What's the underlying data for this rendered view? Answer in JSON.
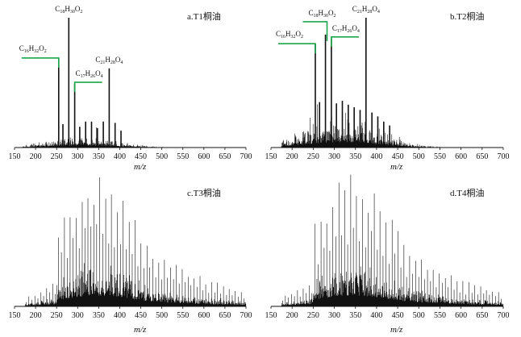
{
  "chart_data": [
    {
      "type": "bar",
      "title": "a.T1桐油",
      "xlabel": "m/z",
      "xlim": [
        150,
        700
      ],
      "xticks": [
        150,
        200,
        250,
        300,
        350,
        400,
        450,
        500,
        550,
        600,
        650,
        700
      ],
      "grid": false,
      "peaks": [
        {
          "x": 255,
          "rel": 0.69
        },
        {
          "x": 279,
          "rel": 1.0
        },
        {
          "x": 293,
          "rel": 0.49
        },
        {
          "x": 375,
          "rel": 0.61
        },
        {
          "x": 265,
          "rel": 0.18
        },
        {
          "x": 305,
          "rel": 0.16
        },
        {
          "x": 319,
          "rel": 0.2
        },
        {
          "x": 333,
          "rel": 0.2
        },
        {
          "x": 347,
          "rel": 0.15
        },
        {
          "x": 361,
          "rel": 0.2
        },
        {
          "x": 389,
          "rel": 0.19
        },
        {
          "x": 403,
          "rel": 0.13
        }
      ],
      "envelope": {
        "center": 310,
        "spread": 80,
        "peak_rel": 0.1,
        "noise_from": 170,
        "noise_to": 580
      },
      "annotations": [
        {
          "x": 255,
          "text": "C16H32O2",
          "base": "C",
          "n1": "16",
          "mid": "H",
          "n2": "32",
          "end": "O",
          "n3": "2",
          "label_side": "left"
        },
        {
          "x": 279,
          "text": "C18H30O2",
          "base": "C",
          "n1": "18",
          "mid": "H",
          "n2": "30",
          "end": "O",
          "n3": "2",
          "label_side": "top"
        },
        {
          "x": 293,
          "text": "C17H26O4",
          "base": "C",
          "n1": "17",
          "mid": "H",
          "n2": "26",
          "end": "O",
          "n3": "4",
          "label_side": "right"
        },
        {
          "x": 375,
          "text": "C21H28O4",
          "base": "C",
          "n1": "21",
          "mid": "H",
          "n2": "28",
          "end": "O",
          "n3": "4",
          "label_side": "top"
        }
      ]
    },
    {
      "type": "bar",
      "title": "b.T2桐油",
      "xlabel": "m/z",
      "xlim": [
        150,
        700
      ],
      "xticks": [
        150,
        200,
        250,
        300,
        350,
        400,
        450,
        500,
        550,
        600,
        650,
        700
      ],
      "grid": false,
      "peaks": [
        {
          "x": 255,
          "rel": 0.8
        },
        {
          "x": 279,
          "rel": 0.87
        },
        {
          "x": 293,
          "rel": 0.84
        },
        {
          "x": 375,
          "rel": 1.0
        },
        {
          "x": 265,
          "rel": 0.35
        },
        {
          "x": 305,
          "rel": 0.34
        },
        {
          "x": 319,
          "rel": 0.36
        },
        {
          "x": 333,
          "rel": 0.33
        },
        {
          "x": 347,
          "rel": 0.31
        },
        {
          "x": 361,
          "rel": 0.29
        },
        {
          "x": 389,
          "rel": 0.27
        },
        {
          "x": 403,
          "rel": 0.24
        },
        {
          "x": 417,
          "rel": 0.2
        },
        {
          "x": 431,
          "rel": 0.17
        }
      ],
      "envelope": {
        "center": 320,
        "spread": 85,
        "peak_rel": 0.28,
        "noise_from": 175,
        "noise_to": 600
      },
      "annotations": [
        {
          "x": 255,
          "text": "C16H32O2",
          "base": "C",
          "n1": "16",
          "mid": "H",
          "n2": "32",
          "end": "O",
          "n3": "2",
          "label_side": "left"
        },
        {
          "x": 279,
          "text": "C18H30O2",
          "base": "C",
          "n1": "18",
          "mid": "H",
          "n2": "30",
          "end": "O",
          "n3": "2",
          "label_side": "left-high"
        },
        {
          "x": 293,
          "text": "C17H26O4",
          "base": "C",
          "n1": "17",
          "mid": "H",
          "n2": "26",
          "end": "O",
          "n3": "4",
          "label_side": "right"
        },
        {
          "x": 375,
          "text": "C21H28O4",
          "base": "C",
          "n1": "21",
          "mid": "H",
          "n2": "28",
          "end": "O",
          "n3": "4",
          "label_side": "top"
        }
      ]
    },
    {
      "type": "bar",
      "title": "c.T3桐油",
      "xlabel": "m/z",
      "xlim": [
        150,
        700
      ],
      "xticks": [
        150,
        200,
        250,
        300,
        350,
        400,
        450,
        500,
        550,
        600,
        650,
        700
      ],
      "grid": false,
      "peaks": [],
      "envelope": {
        "center": 350,
        "spread": 95,
        "peak_rel": 1.0,
        "noise_from": 175,
        "noise_to": 700,
        "periodic": true
      },
      "annotations": []
    },
    {
      "type": "bar",
      "title": "d.T4桐油",
      "xlabel": "m/z",
      "xlim": [
        150,
        700
      ],
      "xticks": [
        150,
        200,
        250,
        300,
        350,
        400,
        450,
        500,
        550,
        600,
        650,
        700
      ],
      "grid": false,
      "peaks": [],
      "envelope": {
        "center": 345,
        "spread": 100,
        "peak_rel": 1.0,
        "noise_from": 175,
        "noise_to": 700,
        "periodic": true
      },
      "annotations": []
    }
  ]
}
